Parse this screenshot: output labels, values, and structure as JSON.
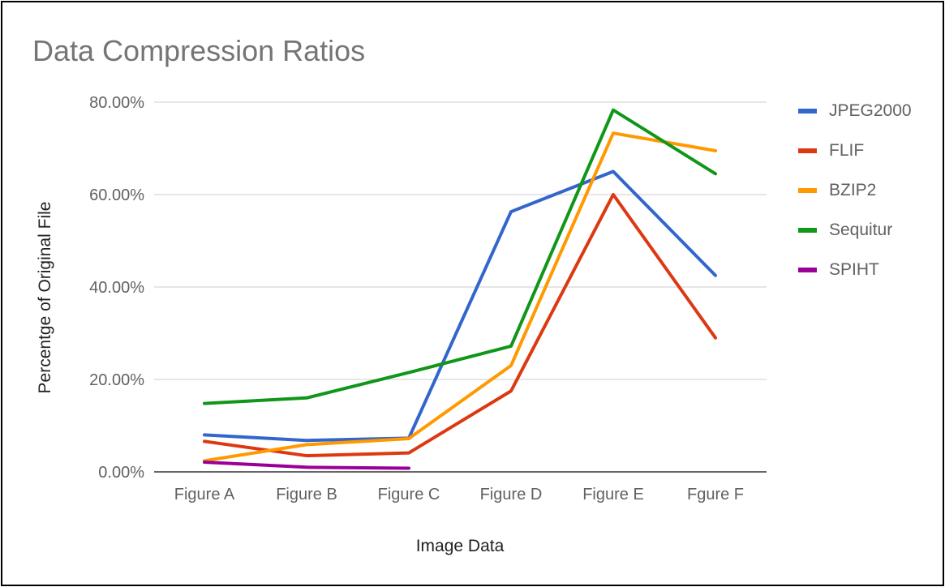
{
  "chart_data": {
    "type": "line",
    "title": "Data Compression Ratios",
    "xlabel": "Image Data",
    "ylabel": "Percentge of Original File",
    "categories": [
      "Figure A",
      "Figure B",
      "Figure C",
      "Figure D",
      "Figure E",
      "Fgure F"
    ],
    "y_ticks": [
      "0.00%",
      "20.00%",
      "40.00%",
      "60.00%",
      "80.00%"
    ],
    "ylim": [
      0,
      80
    ],
    "grid": true,
    "legend_position": "right",
    "series": [
      {
        "name": "JPEG2000",
        "color": "#3366cc",
        "values": [
          8.0,
          6.8,
          7.3,
          56.3,
          65.0,
          42.5
        ]
      },
      {
        "name": "FLIF",
        "color": "#dc3912",
        "values": [
          6.6,
          3.5,
          4.1,
          17.5,
          60.0,
          29.0
        ]
      },
      {
        "name": "BZIP2",
        "color": "#ff9900",
        "values": [
          2.4,
          5.9,
          7.2,
          23.0,
          73.3,
          69.5
        ]
      },
      {
        "name": "Sequitur",
        "color": "#109618",
        "values": [
          14.8,
          16.0,
          21.5,
          27.2,
          78.3,
          64.5
        ]
      },
      {
        "name": "SPIHT",
        "color": "#990099",
        "values": [
          2.1,
          1.0,
          0.8,
          null,
          null,
          null
        ]
      }
    ]
  }
}
